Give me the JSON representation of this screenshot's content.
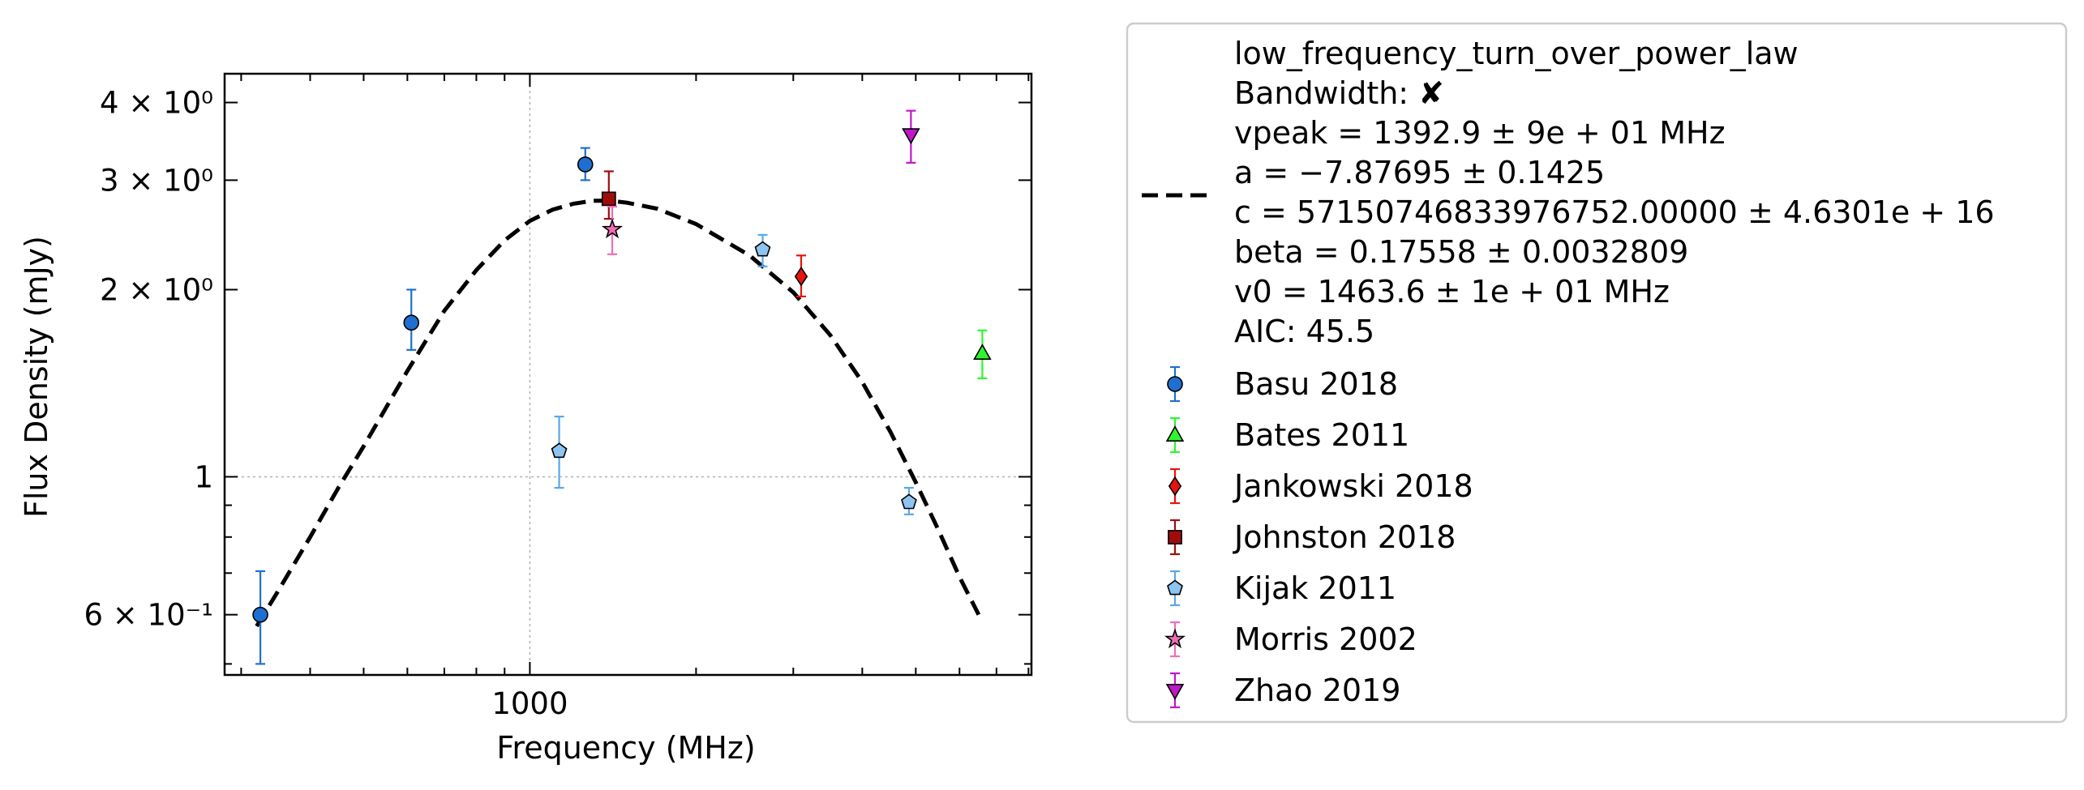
{
  "chart_data": {
    "type": "scatter",
    "xlabel": "Frequency (MHz)",
    "ylabel": "Flux Density (mJy)",
    "x_scale": "log",
    "y_scale": "log",
    "xlim": [
      280,
      8100
    ],
    "ylim": [
      0.48,
      4.45
    ],
    "grid": true,
    "legend_position": "outside-right",
    "x_ticks": [
      {
        "value": 1000,
        "label": "1000"
      }
    ],
    "y_ticks": [
      {
        "value": 0.6,
        "label": "6 × 10⁻¹"
      },
      {
        "value": 1,
        "label": "1"
      },
      {
        "value": 2,
        "label": "2 × 10⁰"
      },
      {
        "value": 3,
        "label": "3 × 10⁰"
      },
      {
        "value": 4,
        "label": "4 × 10⁰"
      }
    ],
    "fit": {
      "model": "low_frequency_turn_over_power_law",
      "color": "#000000",
      "style": "dashed",
      "vpeak": 1392.9,
      "a": -7.87695,
      "beta": 0.17558,
      "v0": 1463.6,
      "curve_x": [
        320,
        350,
        400,
        450,
        500,
        600,
        700,
        800,
        900,
        1000,
        1100,
        1200,
        1300,
        1400,
        1500,
        1700,
        2000,
        2500,
        3000,
        3500,
        4000,
        4500,
        5000,
        5500,
        6000,
        6500
      ],
      "curve_y": [
        0.575,
        0.655,
        0.8,
        0.96,
        1.12,
        1.48,
        1.85,
        2.15,
        2.4,
        2.58,
        2.69,
        2.75,
        2.78,
        2.78,
        2.76,
        2.7,
        2.55,
        2.27,
        1.98,
        1.69,
        1.42,
        1.18,
        0.98,
        0.82,
        0.69,
        0.6
      ]
    },
    "series": [
      {
        "name": "Basu 2018",
        "marker": "circle",
        "color": "#1f6fd1",
        "errcolor": "#1f6fd1",
        "points": [
          {
            "x": 325,
            "y": 0.6,
            "lo": 0.5,
            "hi": 0.705
          },
          {
            "x": 610,
            "y": 1.77,
            "lo": 1.6,
            "hi": 2.0
          },
          {
            "x": 1260,
            "y": 3.18,
            "lo": 3.0,
            "hi": 3.38
          }
        ]
      },
      {
        "name": "Bates 2011",
        "marker": "triangle-up",
        "color": "#2ff52f",
        "errcolor": "#2ff52f",
        "points": [
          {
            "x": 6600,
            "y": 1.58,
            "lo": 1.44,
            "hi": 1.72
          }
        ]
      },
      {
        "name": "Jankowski 2018",
        "marker": "diamond",
        "color": "#e8140c",
        "errcolor": "#e8140c",
        "points": [
          {
            "x": 3100,
            "y": 2.1,
            "lo": 1.95,
            "hi": 2.27
          }
        ]
      },
      {
        "name": "Johnston 2018",
        "marker": "square",
        "color": "#a00c0c",
        "errcolor": "#a00c0c",
        "points": [
          {
            "x": 1390,
            "y": 2.8,
            "lo": 2.6,
            "hi": 3.1
          }
        ]
      },
      {
        "name": "Kijak 2011",
        "marker": "pentagon",
        "color": "#8ec4f0",
        "errcolor": "#5aa7e8",
        "points": [
          {
            "x": 1130,
            "y": 1.1,
            "lo": 0.96,
            "hi": 1.25
          },
          {
            "x": 2640,
            "y": 2.32,
            "lo": 2.18,
            "hi": 2.45
          },
          {
            "x": 4860,
            "y": 0.91,
            "lo": 0.87,
            "hi": 0.96
          }
        ]
      },
      {
        "name": "Morris 2002",
        "marker": "star",
        "color": "#f06eb4",
        "errcolor": "#f06eb4",
        "points": [
          {
            "x": 1410,
            "y": 2.5,
            "lo": 2.28,
            "hi": 2.72
          }
        ]
      },
      {
        "name": "Zhao 2019",
        "marker": "triangle-down",
        "color": "#c018c8",
        "errcolor": "#c018c8",
        "points": [
          {
            "x": 4900,
            "y": 3.55,
            "lo": 3.2,
            "hi": 3.88
          }
        ]
      }
    ]
  },
  "legend": {
    "fit_lines": [
      "low_frequency_turn_over_power_law",
      "Bandwidth: ✘",
      "vpeak = 1392.9 ± 9e + 01 MHz",
      "a = −7.87695 ± 0.1425",
      "c = 57150746833976752.00000 ± 4.6301e + 16",
      "beta = 0.17558 ± 0.0032809",
      "v0 = 1463.6 ± 1e + 01 MHz",
      "AIC: 45.5"
    ]
  }
}
